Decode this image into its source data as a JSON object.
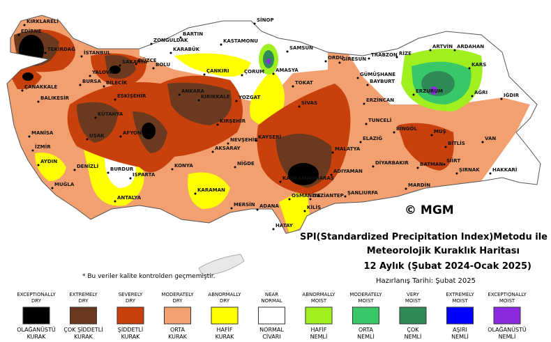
{
  "map": {
    "title_lines": [
      "SPI(Standardized Precipitation Index)Metodu ile",
      "Meteorolojik Kuraklık Haritası",
      "12 Aylık (Şubat 2024-Ocak 2025)"
    ],
    "prepared": "Hazırlanış Tarihi: Şubat 2025",
    "note": "* Bu veriler kalite kontrolden geçmemiştir.",
    "copyright": "© MGM",
    "cities": [
      "KIRKLARELİ",
      "EDİRNE",
      "TEKİRDAĞ",
      "İSTANBUL",
      "SİNOP",
      "BARTIN",
      "ZONGULDAK",
      "KASTAMONU",
      "KARABÜK",
      "SAMSUN",
      "ORDU",
      "GİRESUN",
      "TRABZON",
      "RİZE",
      "ARTVİN",
      "ARDAHAN",
      "DÜZCE",
      "BOLU",
      "SAKARYA",
      "YALOVA",
      "BURSA",
      "BİLECİK",
      "ÇANKIRI",
      "ÇORUM",
      "AMASYA",
      "TOKAT",
      "GÜMÜŞHANE",
      "BAYBURT",
      "KARS",
      "ERZURUM",
      "AĞRI",
      "IĞDIR",
      "ÇANAKKALE",
      "BALIKESİR",
      "ESKİŞEHİR",
      "ANKARA",
      "KIRIKKALE",
      "YOZGAT",
      "SİVAS",
      "ERZİNCAN",
      "KÜTAHYA",
      "TUNCELİ",
      "BİNGÖL",
      "MUŞ",
      "MANİSA",
      "UŞAK",
      "AFYON",
      "KIRŞEHİR",
      "NEVŞEHİR",
      "KAYSERİ",
      "AKSARAY",
      "MALATYA",
      "ELAZIĞ",
      "BİTLİS",
      "VAN",
      "İZMİR",
      "AYDIN",
      "DENİZLİ",
      "BURDUR",
      "ISPARTA",
      "KONYA",
      "NİĞDE",
      "KAHRAMANMARAŞ",
      "ADIYAMAN",
      "DİYARBAKIR",
      "BATMAN",
      "SİİRT",
      "ŞIRNAK",
      "HAKKARİ",
      "MUĞLA",
      "ANTALYA",
      "KARAMAN",
      "ADANA",
      "MERSİN",
      "OSMANİYE",
      "GAZİANTEP",
      "ŞANLIURFA",
      "MARDİN",
      "KİLİS",
      "HATAY"
    ]
  },
  "legend": [
    {
      "en": [
        "EXCEPTIONALLY",
        "DRY"
      ],
      "tr": [
        "OLAĞANÜSTÜ",
        "KURAK"
      ],
      "color": "#000000"
    },
    {
      "en": [
        "EXTREMELY",
        "DRY"
      ],
      "tr": [
        "ÇOK ŞİDDETLİ",
        "KURAK"
      ],
      "color": "#6b3a1e"
    },
    {
      "en": [
        "SEVERELY",
        "DRY"
      ],
      "tr": [
        "ŞİDDETLİ",
        "KURAK"
      ],
      "color": "#c8400c"
    },
    {
      "en": [
        "MODERATELY",
        "DRY"
      ],
      "tr": [
        "ORTA",
        "KURAK"
      ],
      "color": "#f2a070"
    },
    {
      "en": [
        "ABNORMALLY",
        "DRY"
      ],
      "tr": [
        "HAFİF",
        "KURAK"
      ],
      "color": "#ffff00"
    },
    {
      "en": [
        "NEAR",
        "NORMAL"
      ],
      "tr": [
        "NORMAL",
        "CİVARI"
      ],
      "color": "#ffffff"
    },
    {
      "en": [
        "ABNORMALLY",
        "MOIST"
      ],
      "tr": [
        "HAFİF",
        "NEMLİ"
      ],
      "color": "#a0f020"
    },
    {
      "en": [
        "MODERATELY",
        "MOIST"
      ],
      "tr": [
        "ORTA",
        "NEMLİ"
      ],
      "color": "#38c868"
    },
    {
      "en": [
        "VERY",
        "MOIST"
      ],
      "tr": [
        "ÇOK",
        "NEMLİ"
      ],
      "color": "#2e8b57"
    },
    {
      "en": [
        "EXTREMELY",
        "MOIST"
      ],
      "tr": [
        "AŞIRI",
        "NEMLİ"
      ],
      "color": "#0000ff"
    },
    {
      "en": [
        "EXCEPTIONALLY",
        "MOIST"
      ],
      "tr": [
        "OLAĞANÜSTÜ",
        "NEMLİ"
      ],
      "color": "#8a2be2"
    }
  ]
}
